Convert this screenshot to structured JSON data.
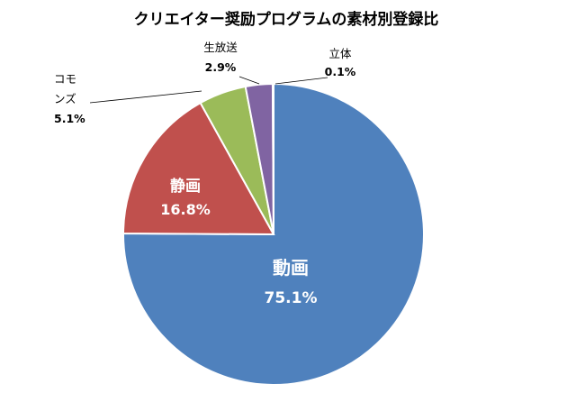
{
  "chart_data": {
    "type": "pie",
    "title": "クリエイター奨励プログラムの素材別登録比",
    "slices": [
      {
        "name": "動画",
        "name_lines": [
          "動画"
        ],
        "value": 75.1,
        "label": "75.1%",
        "color": "#4F81BD",
        "label_position": "inside"
      },
      {
        "name": "静画",
        "name_lines": [
          "静画"
        ],
        "value": 16.8,
        "label": "16.8%",
        "color": "#C0504D",
        "label_position": "inside"
      },
      {
        "name": "コモンズ",
        "name_lines": [
          "コモ",
          "ンズ"
        ],
        "value": 5.1,
        "label": "5.1%",
        "color": "#9BBB59",
        "label_position": "outside-left"
      },
      {
        "name": "生放送",
        "name_lines": [
          "生放送"
        ],
        "value": 2.9,
        "label": "2.9%",
        "color": "#8064A2",
        "label_position": "outside-top"
      },
      {
        "name": "立体",
        "name_lines": [
          "立体"
        ],
        "value": 0.1,
        "label": "0.1%",
        "color": "#4BACC6",
        "label_position": "outside-top-right"
      }
    ],
    "start_angle": "12 o'clock",
    "direction": "clockwise",
    "slice_border_color": "#ffffff"
  }
}
